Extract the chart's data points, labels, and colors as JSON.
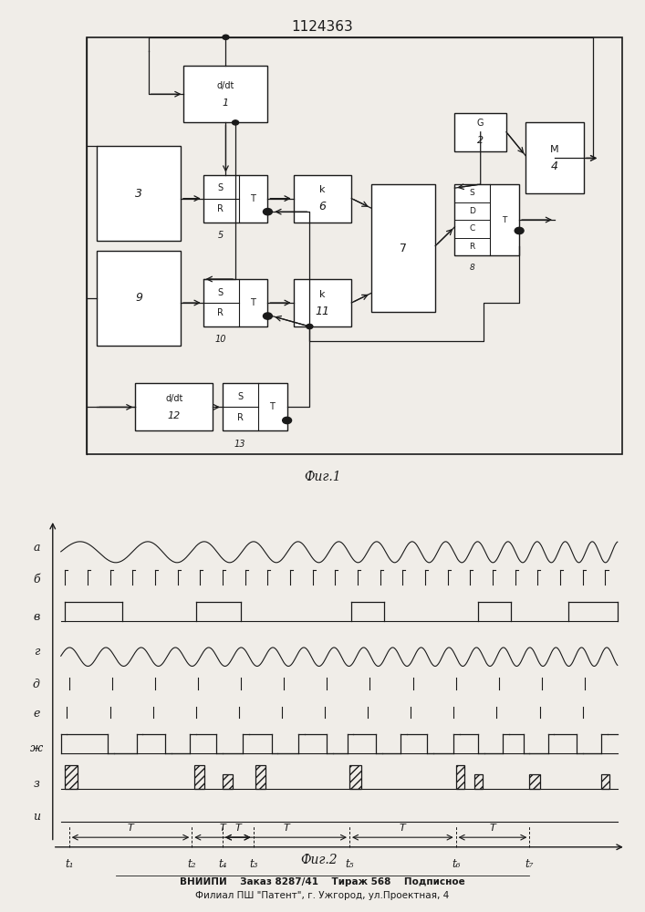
{
  "title": "1124363",
  "fig1_caption": "Фиг.1",
  "fig2_caption": "Фиг.2",
  "footer_line1": "ВНИИПИ    Заказ 8287/41    Тираж 568    Подписное",
  "footer_line2": "Филиал ПШ \"Патент\", г. Ужгород, ул.Проектная, 4",
  "signal_labels": [
    "а",
    "б",
    "в",
    "г",
    "д",
    "е",
    "ж",
    "з",
    "и"
  ],
  "time_labels": [
    "t₁",
    "t₂",
    "t₃",
    "t₄",
    "t₅",
    "t₆",
    "t₇"
  ],
  "T_label": "T",
  "bg_color": "#f0ede8",
  "line_color": "#1a1a1a"
}
